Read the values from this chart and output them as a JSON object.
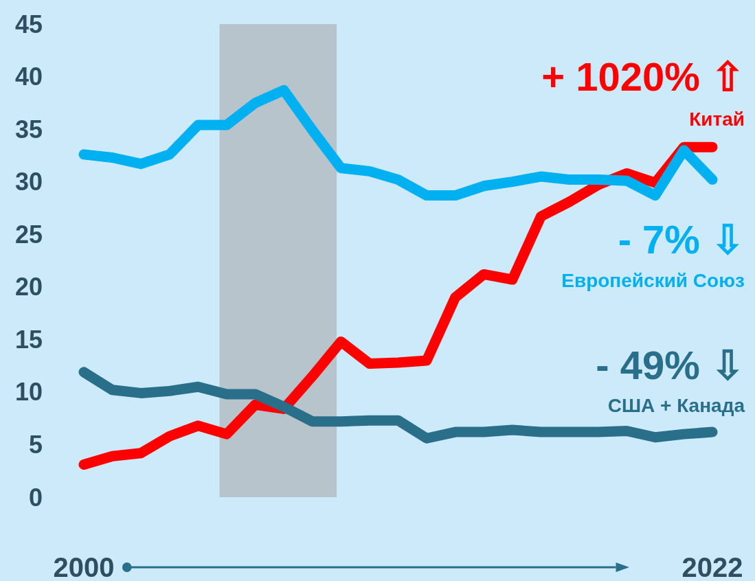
{
  "chart_data": {
    "type": "line",
    "x": [
      2000,
      2001,
      2002,
      2003,
      2004,
      2005,
      2006,
      2007,
      2008,
      2009,
      2010,
      2011,
      2012,
      2013,
      2014,
      2015,
      2016,
      2017,
      2018,
      2019,
      2020,
      2021,
      2022
    ],
    "series": [
      {
        "name": "Китай",
        "color": "#ff0000",
        "values": [
          3.1,
          3.9,
          4.2,
          5.8,
          6.8,
          6.0,
          8.8,
          8.4,
          11.5,
          14.8,
          12.7,
          12.8,
          13.0,
          19.0,
          21.2,
          20.7,
          26.7,
          28.1,
          29.7,
          30.8,
          29.9,
          33.3,
          33.3
        ]
      },
      {
        "name": "Европейский Союз",
        "color": "#00b0f0",
        "values": [
          32.6,
          32.3,
          31.7,
          32.6,
          35.4,
          35.4,
          37.5,
          38.7,
          34.9,
          31.3,
          31.0,
          30.2,
          28.7,
          28.7,
          29.6,
          30.0,
          30.5,
          30.2,
          30.2,
          30.1,
          28.7,
          33.0,
          30.2
        ]
      },
      {
        "name": "США + Канада",
        "color": "#2a6f8a",
        "values": [
          11.9,
          10.2,
          9.9,
          10.1,
          10.5,
          9.8,
          9.8,
          8.6,
          7.2,
          7.2,
          7.3,
          7.3,
          5.6,
          6.2,
          6.2,
          6.4,
          6.2,
          6.2,
          6.2,
          6.3,
          5.7,
          6.0,
          6.2
        ]
      }
    ],
    "annotations": [
      "+ 1020% ⇧",
      "- 7% ⇩",
      "- 49% ⇩"
    ],
    "bands": [
      {
        "axis": "x",
        "from": 2004.75,
        "to": 2008.85,
        "color": "#b8c4cc"
      }
    ],
    "xlim": [
      2000,
      2022
    ],
    "xticks": [
      2000,
      2022
    ],
    "ylim": [
      0,
      45
    ],
    "yticks": [
      0,
      5,
      10,
      15,
      20,
      25,
      30,
      35,
      40,
      45
    ],
    "grid": false,
    "legend": false,
    "line_style": "solid"
  }
}
